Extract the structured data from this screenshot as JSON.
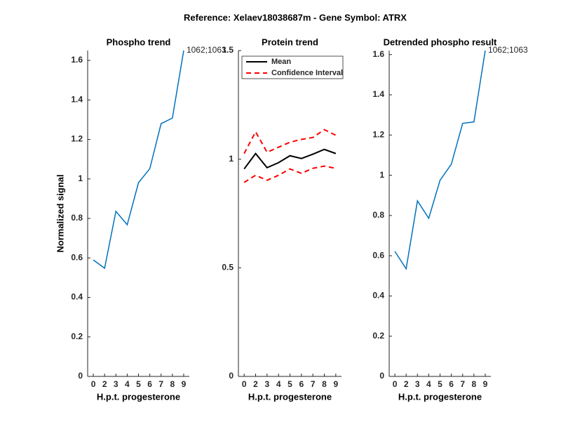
{
  "title": "Reference:  Xelaev18038687m - Gene Symbol:  ATRX",
  "chart_data": [
    {
      "type": "line",
      "title": "Phospho trend",
      "xlabel": "H.p.t. progesterone",
      "ylabel": "Normalized signal",
      "categories": [
        "0",
        "2",
        "3",
        "4",
        "5",
        "6",
        "7",
        "8",
        "9"
      ],
      "series": [
        {
          "color": "#0072bd",
          "values": [
            0.59,
            0.548,
            0.836,
            0.768,
            0.981,
            1.052,
            1.28,
            1.308,
            1.65
          ]
        }
      ],
      "annotation": "1062;1063",
      "ylim": [
        0,
        1.65
      ],
      "yticks": [
        0,
        0.2,
        0.4,
        0.6,
        0.8,
        1,
        1.2,
        1.4,
        1.6
      ]
    },
    {
      "type": "band",
      "title": "Protein trend",
      "xlabel": "H.p.t. progesterone",
      "categories": [
        "0",
        "2",
        "3",
        "4",
        "5",
        "6",
        "7",
        "8",
        "9"
      ],
      "series": [
        {
          "name": "Mean",
          "color": "#000000",
          "values": [
            0.955,
            1.026,
            0.961,
            0.984,
            1.016,
            1.003,
            1.023,
            1.045,
            1.026
          ]
        },
        {
          "name": "Confidence Interval",
          "color": "#ff0000",
          "upper": [
            1.026,
            1.126,
            1.032,
            1.055,
            1.078,
            1.091,
            1.1,
            1.136,
            1.11
          ],
          "lower": [
            0.893,
            0.926,
            0.903,
            0.926,
            0.955,
            0.935,
            0.958,
            0.968,
            0.958
          ]
        }
      ],
      "legend": "upper-left",
      "ylim": [
        0,
        1.5
      ],
      "yticks": [
        0,
        0.5,
        1,
        1.5
      ]
    },
    {
      "type": "line",
      "title": "Detrended phospho result",
      "xlabel": "H.p.t. progesterone",
      "categories": [
        "0",
        "2",
        "3",
        "4",
        "5",
        "6",
        "7",
        "8",
        "9"
      ],
      "series": [
        {
          "color": "#0072bd",
          "values": [
            0.622,
            0.535,
            0.873,
            0.786,
            0.975,
            1.055,
            1.258,
            1.265,
            1.62
          ]
        }
      ],
      "annotation": "1062;1063",
      "ylim": [
        0,
        1.62
      ],
      "yticks": [
        0,
        0.2,
        0.4,
        0.6,
        0.8,
        1,
        1.2,
        1.4,
        1.6
      ]
    }
  ]
}
